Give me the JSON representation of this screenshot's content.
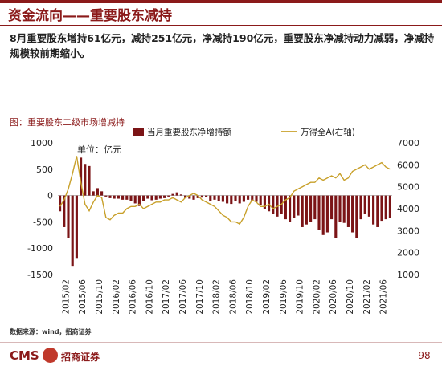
{
  "slide": {
    "title": "资金流向——重要股东减持",
    "lead": "8月重要股东增持61亿元，减持251亿元，净减持190亿元，重要股东净减持动力减弱，净减持规模较前期缩小。",
    "caption": "图：重要股东二级市场增减持",
    "source": "数据来源：wind，招商证券",
    "brand": "CMS",
    "brand_cn": "招商证券",
    "page_number": "-98-"
  },
  "colors": {
    "bar": "#7b1416",
    "line": "#c8a02a",
    "accent": "#8b1a1a"
  },
  "chart_data": {
    "type": "bar+line",
    "unit_note": "单位：亿元",
    "left_axis": {
      "min": -1500,
      "max": 1000,
      "ticks": [
        1000,
        500,
        0,
        -500,
        -1000,
        -1500
      ]
    },
    "right_axis": {
      "min": 1000,
      "max": 7000,
      "ticks": [
        7000,
        6000,
        5000,
        4000,
        3000,
        2000,
        1000
      ]
    },
    "tick_labels": [
      "2015/02",
      "2015/06",
      "2015/10",
      "2016/02",
      "2016/06",
      "2016/10",
      "2017/02",
      "2017/06",
      "2017/10",
      "2018/02",
      "2018/06",
      "2018/10",
      "2019/02",
      "2019/06",
      "2019/10",
      "2020/02",
      "2020/06",
      "2020/10",
      "2021/02",
      "2021/06"
    ],
    "series": [
      {
        "name": "当月重要股东净增持额",
        "kind": "bar",
        "axis": "left",
        "values": [
          -300,
          -600,
          -800,
          -1350,
          -1200,
          720,
          600,
          560,
          80,
          140,
          80,
          -20,
          -50,
          -60,
          -60,
          -80,
          -80,
          -100,
          -150,
          -200,
          -100,
          -60,
          -90,
          -80,
          -60,
          -50,
          -20,
          30,
          60,
          20,
          -50,
          -60,
          -80,
          -50,
          -40,
          -30,
          -100,
          -80,
          -100,
          -120,
          -150,
          -160,
          -100,
          -150,
          -120,
          -80,
          -100,
          -120,
          -180,
          -250,
          -300,
          -350,
          -400,
          -350,
          -450,
          -500,
          -420,
          -380,
          -600,
          -550,
          -500,
          -450,
          -650,
          -750,
          -700,
          -450,
          -800,
          -500,
          -520,
          -600,
          -700,
          -800,
          -450,
          -350,
          -400,
          -550,
          -600,
          -480,
          -450,
          -420
        ]
      },
      {
        "name": "万得全A(右轴)",
        "kind": "line",
        "axis": "right",
        "values": [
          4100,
          4400,
          4900,
          5600,
          6400,
          5200,
          4200,
          3900,
          4300,
          4600,
          4500,
          3600,
          3500,
          3700,
          3800,
          3800,
          4000,
          4100,
          4100,
          4200,
          4000,
          4100,
          4200,
          4300,
          4300,
          4400,
          4400,
          4500,
          4400,
          4300,
          4500,
          4600,
          4700,
          4600,
          4400,
          4300,
          4200,
          4100,
          3900,
          3700,
          3600,
          3400,
          3400,
          3300,
          3600,
          4100,
          4400,
          4300,
          4100,
          4100,
          4200,
          4000,
          4100,
          4200,
          4400,
          4500,
          4800,
          4900,
          5000,
          5100,
          5200,
          5200,
          5400,
          5300,
          5400,
          5500,
          5400,
          5600,
          5300,
          5400,
          5700,
          5800,
          5900,
          6000,
          5800,
          5900,
          6000,
          6100,
          5900,
          5800
        ]
      }
    ],
    "legend_position": "top"
  }
}
